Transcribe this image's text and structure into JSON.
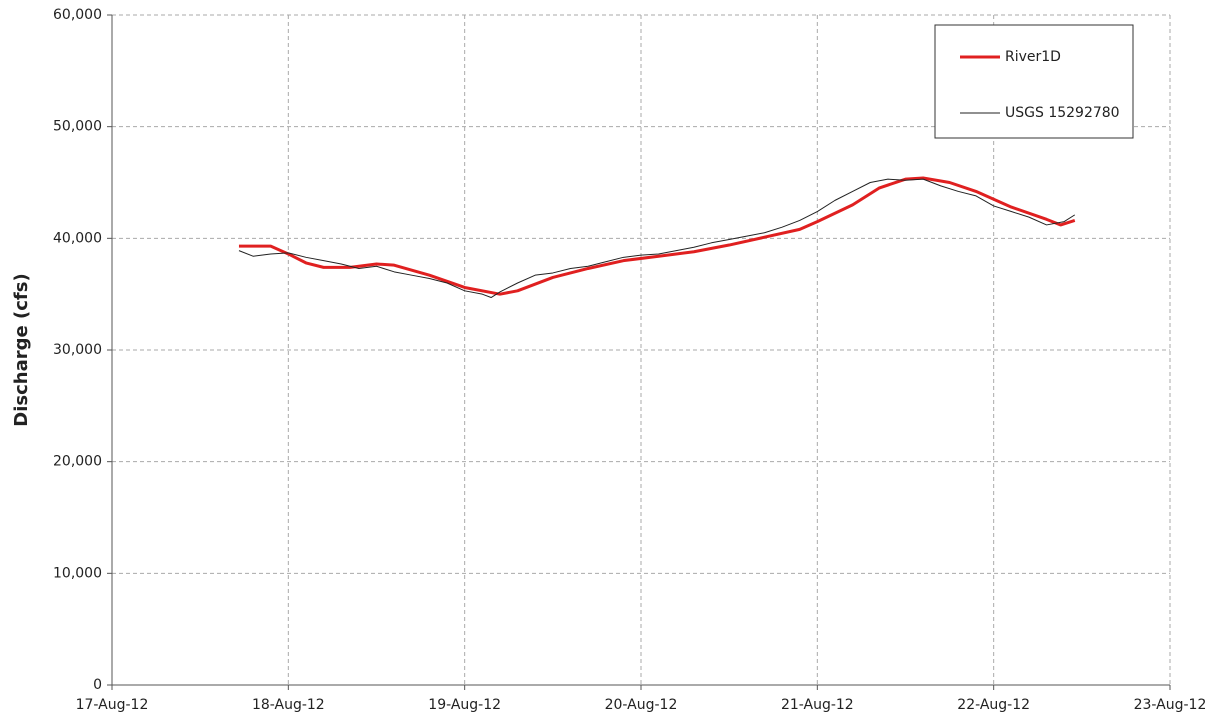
{
  "chart_data": {
    "type": "line",
    "y_label": "Discharge (cfs)",
    "xlim": [
      41138,
      41144
    ],
    "xticks": [
      {
        "value": 41138,
        "label": "17-Aug-12"
      },
      {
        "value": 41139,
        "label": "18-Aug-12"
      },
      {
        "value": 41140,
        "label": "19-Aug-12"
      },
      {
        "value": 41141,
        "label": "20-Aug-12"
      },
      {
        "value": 41142,
        "label": "21-Aug-12"
      },
      {
        "value": 41143,
        "label": "22-Aug-12"
      },
      {
        "value": 41144,
        "label": "23-Aug-12"
      }
    ],
    "ylim": [
      0,
      60000
    ],
    "yticks": [
      0,
      {
        "value": 10000,
        "label": "10,000"
      },
      {
        "value": 20000,
        "label": "20,000"
      },
      {
        "value": 30000,
        "label": "30,000"
      },
      {
        "value": 40000,
        "label": "40,000"
      },
      {
        "value": 50000,
        "label": "50,000"
      },
      {
        "value": 60000,
        "label": "60,000"
      }
    ],
    "grid": true,
    "legend": "upper right",
    "series": [
      {
        "name": "River1D",
        "color": "#e02020",
        "width": 3,
        "x": [
          41138.72,
          41138.9,
          41139.0,
          41139.1,
          41139.2,
          41139.35,
          41139.5,
          41139.6,
          41139.8,
          41140.0,
          41140.2,
          41140.3,
          41140.5,
          41140.7,
          41140.9,
          41141.1,
          41141.3,
          41141.5,
          41141.7,
          41141.9,
          41142.0,
          41142.2,
          41142.35,
          41142.5,
          41142.6,
          41142.75,
          41142.9,
          41143.1,
          41143.3,
          41143.38,
          41143.46
        ],
        "values": [
          39300,
          39300,
          38600,
          37800,
          37400,
          37400,
          37700,
          37600,
          36700,
          35600,
          35000,
          35300,
          36500,
          37300,
          38000,
          38400,
          38800,
          39400,
          40100,
          40800,
          41500,
          43000,
          44500,
          45300,
          45400,
          45000,
          44200,
          42800,
          41700,
          41200,
          41600
        ]
      },
      {
        "name": "USGS 15292780",
        "color": "#222222",
        "width": 1,
        "x": [
          41138.72,
          41138.8,
          41138.9,
          41139.0,
          41139.1,
          41139.2,
          41139.3,
          41139.4,
          41139.5,
          41139.6,
          41139.7,
          41139.8,
          41139.9,
          41140.0,
          41140.1,
          41140.15,
          41140.2,
          41140.3,
          41140.4,
          41140.5,
          41140.6,
          41140.7,
          41140.8,
          41140.9,
          41141.0,
          41141.1,
          41141.2,
          41141.3,
          41141.4,
          41141.5,
          41141.6,
          41141.7,
          41141.8,
          41141.9,
          41142.0,
          41142.1,
          41142.2,
          41142.3,
          41142.4,
          41142.5,
          41142.6,
          41142.7,
          41142.8,
          41142.9,
          41143.0,
          41143.1,
          41143.2,
          41143.3,
          41143.4,
          41143.46
        ],
        "values": [
          38900,
          38400,
          38600,
          38700,
          38300,
          38000,
          37700,
          37300,
          37500,
          37000,
          36700,
          36400,
          36000,
          35300,
          35000,
          34700,
          35200,
          36000,
          36700,
          36900,
          37300,
          37500,
          37900,
          38300,
          38500,
          38600,
          38900,
          39200,
          39600,
          39900,
          40200,
          40500,
          41000,
          41600,
          42400,
          43400,
          44200,
          45000,
          45300,
          45200,
          45300,
          44700,
          44200,
          43800,
          42900,
          42400,
          41900,
          41200,
          41500,
          42100
        ]
      }
    ]
  }
}
